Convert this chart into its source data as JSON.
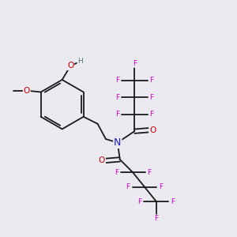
{
  "background_color": "#eaeaf0",
  "bond_color": "#1a1a1a",
  "bond_width": 1.3,
  "atom_colors": {
    "C": "#1a1a1a",
    "H": "#507575",
    "O": "#cc0000",
    "N": "#1a1acc",
    "F": "#cc00cc"
  },
  "font_size_atom": 7.5,
  "fig_width": 3.0,
  "fig_height": 3.0,
  "dpi": 100
}
